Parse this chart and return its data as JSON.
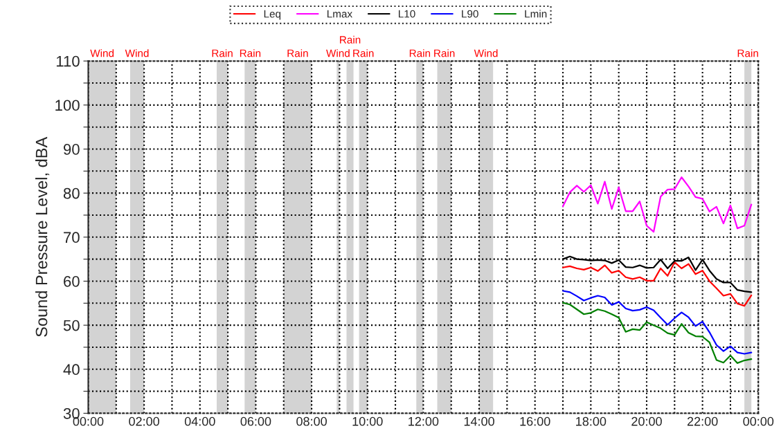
{
  "chart_data": {
    "type": "line",
    "ylabel": "Sound Pressure Level, dBA",
    "x": [
      17,
      17.25,
      17.5,
      17.75,
      18,
      18.25,
      18.5,
      18.75,
      19,
      19.25,
      19.5,
      19.75,
      20,
      20.25,
      20.5,
      20.75,
      21,
      21.25,
      21.5,
      21.75,
      22,
      22.25,
      22.5,
      22.75,
      23,
      23.25,
      23.5,
      23.75
    ],
    "series": [
      {
        "name": "Leq",
        "color": "#ff0000",
        "values": [
          63.1,
          63.4,
          62.9,
          62.6,
          63.1,
          62.3,
          63.6,
          61.9,
          62.4,
          60.9,
          60.5,
          60.9,
          60.1,
          60.1,
          62.9,
          61.2,
          64.3,
          62.9,
          63.9,
          61.6,
          62.4,
          60.0,
          58.4,
          56.7,
          57.1,
          54.9,
          54.4,
          56.8
        ]
      },
      {
        "name": "Lmax",
        "color": "#ff00ff",
        "values": [
          77.0,
          80.2,
          81.7,
          80.3,
          81.8,
          77.6,
          82.6,
          76.4,
          81.3,
          75.9,
          75.9,
          78.1,
          72.6,
          71.2,
          79.2,
          80.8,
          80.9,
          83.6,
          81.5,
          79.1,
          78.7,
          75.8,
          76.9,
          73.1,
          77.2,
          72.0,
          72.6,
          77.4
        ]
      },
      {
        "name": "L10",
        "color": "#000000",
        "values": [
          65.0,
          65.6,
          65.0,
          64.9,
          64.7,
          64.8,
          64.7,
          64.1,
          64.8,
          63.2,
          63.1,
          63.6,
          63.0,
          63.1,
          64.9,
          62.9,
          64.6,
          64.6,
          65.4,
          62.5,
          64.9,
          62.4,
          60.5,
          59.7,
          59.7,
          58.0,
          57.7,
          57.5
        ]
      },
      {
        "name": "L90",
        "color": "#0000ff",
        "values": [
          57.8,
          57.5,
          56.6,
          55.6,
          56.2,
          56.7,
          56.3,
          54.6,
          55.3,
          53.8,
          53.3,
          53.5,
          54.1,
          53.4,
          51.7,
          50.1,
          51.6,
          52.9,
          51.8,
          49.8,
          50.8,
          48.4,
          45.5,
          44.1,
          45.2,
          43.8,
          43.5,
          43.8
        ]
      },
      {
        "name": "Lmin",
        "color": "#008000",
        "values": [
          55.1,
          54.7,
          53.6,
          52.5,
          52.8,
          53.6,
          53.2,
          52.5,
          51.7,
          48.5,
          49.1,
          48.9,
          50.7,
          50.0,
          49.3,
          48.2,
          47.8,
          50.3,
          48.3,
          47.5,
          47.4,
          46.1,
          42.1,
          41.5,
          43.1,
          41.4,
          42.0,
          42.3
        ]
      }
    ],
    "xlim": [
      0,
      24
    ],
    "xticks": [
      {
        "value": 0,
        "label": "00:00"
      },
      {
        "value": 1,
        "label": null
      },
      {
        "value": 2,
        "label": "02:00"
      },
      {
        "value": 3,
        "label": null
      },
      {
        "value": 4,
        "label": "04:00"
      },
      {
        "value": 5,
        "label": null
      },
      {
        "value": 6,
        "label": "06:00"
      },
      {
        "value": 7,
        "label": null
      },
      {
        "value": 8,
        "label": "08:00"
      },
      {
        "value": 9,
        "label": null
      },
      {
        "value": 10,
        "label": "10:00"
      },
      {
        "value": 11,
        "label": null
      },
      {
        "value": 12,
        "label": "12:00"
      },
      {
        "value": 13,
        "label": null
      },
      {
        "value": 14,
        "label": "14:00"
      },
      {
        "value": 15,
        "label": null
      },
      {
        "value": 16,
        "label": "16:00"
      },
      {
        "value": 17,
        "label": null
      },
      {
        "value": 18,
        "label": "18:00"
      },
      {
        "value": 19,
        "label": null
      },
      {
        "value": 20,
        "label": "20:00"
      },
      {
        "value": 21,
        "label": null
      },
      {
        "value": 22,
        "label": "22:00"
      },
      {
        "value": 23,
        "label": null
      },
      {
        "value": 24,
        "label": "00:00"
      }
    ],
    "ylim": [
      30,
      110
    ],
    "yticks": [
      30,
      {
        "value": 35,
        "label": null
      },
      40,
      {
        "value": 45,
        "label": null
      },
      50,
      {
        "value": 55,
        "label": null
      },
      60,
      {
        "value": 65,
        "label": null
      },
      70,
      {
        "value": 75,
        "label": null
      },
      80,
      {
        "value": 85,
        "label": null
      },
      90,
      {
        "value": 95,
        "label": null
      },
      100,
      {
        "value": 105,
        "label": null
      },
      110
    ],
    "bands": [
      {
        "axis": "x",
        "from": 0,
        "to": 1,
        "label": "Wind",
        "color": "#d3d3d3"
      },
      {
        "axis": "x",
        "from": 1.5,
        "to": 2,
        "label": "Wind",
        "color": "#d3d3d3"
      },
      {
        "axis": "x",
        "from": 4.6,
        "to": 5,
        "label": "Rain",
        "color": "#d3d3d3"
      },
      {
        "axis": "x",
        "from": 5.6,
        "to": 6,
        "label": "Rain",
        "color": "#d3d3d3"
      },
      {
        "axis": "x",
        "from": 7,
        "to": 8,
        "label": "Rain",
        "color": "#d3d3d3"
      },
      {
        "axis": "x",
        "from": 8.9,
        "to": 9,
        "label": "Wind",
        "color": "#d3d3d3"
      },
      {
        "axis": "x",
        "from": 9.25,
        "to": 9.5,
        "label": "Rain",
        "color": "#d3d3d3"
      },
      {
        "axis": "x",
        "from": 9.7,
        "to": 10,
        "label": "Rain",
        "color": "#d3d3d3"
      },
      {
        "axis": "x",
        "from": 11.75,
        "to": 12,
        "label": "Rain",
        "color": "#d3d3d3"
      },
      {
        "axis": "x",
        "from": 12.5,
        "to": 13,
        "label": "Rain",
        "color": "#d3d3d3"
      },
      {
        "axis": "x",
        "from": 14,
        "to": 14.5,
        "label": "Wind",
        "color": "#d3d3d3"
      },
      {
        "axis": "x",
        "from": 23.5,
        "to": 23.75,
        "label": "Rain",
        "color": "#d3d3d3"
      }
    ],
    "grid": true,
    "legend": "top",
    "line_style": "solid",
    "marker": "none"
  }
}
